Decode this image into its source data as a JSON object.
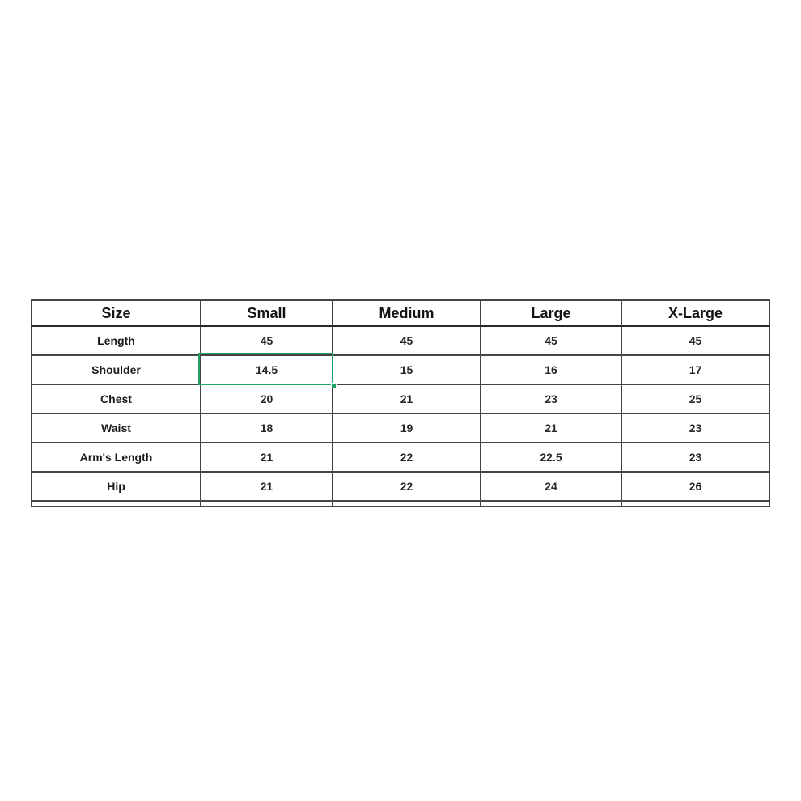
{
  "table": {
    "columns": [
      "Size",
      "Small",
      "Medium",
      "Large",
      "X-Large"
    ],
    "rows": [
      {
        "label": "Length",
        "values": [
          "45",
          "45",
          "45",
          "45"
        ]
      },
      {
        "label": "Shoulder",
        "values": [
          "14.5",
          "15",
          "16",
          "17"
        ]
      },
      {
        "label": "Chest",
        "values": [
          "20",
          "21",
          "23",
          "25"
        ]
      },
      {
        "label": "Waist",
        "values": [
          "18",
          "19",
          "21",
          "23"
        ]
      },
      {
        "label": "Arm's Length",
        "values": [
          "21",
          "22",
          "22.5",
          "23"
        ]
      },
      {
        "label": "Hip",
        "values": [
          "21",
          "22",
          "24",
          "26"
        ]
      }
    ],
    "selection": {
      "row": "Shoulder",
      "column": "Small",
      "value": "14.5",
      "border_color": "#21a366"
    }
  },
  "colors": {
    "page_background": "#ffffff",
    "grid_line": "#454545",
    "outer_border": "#1f1f1f",
    "text": "#1d1d22",
    "selection_green": "#21a366"
  }
}
